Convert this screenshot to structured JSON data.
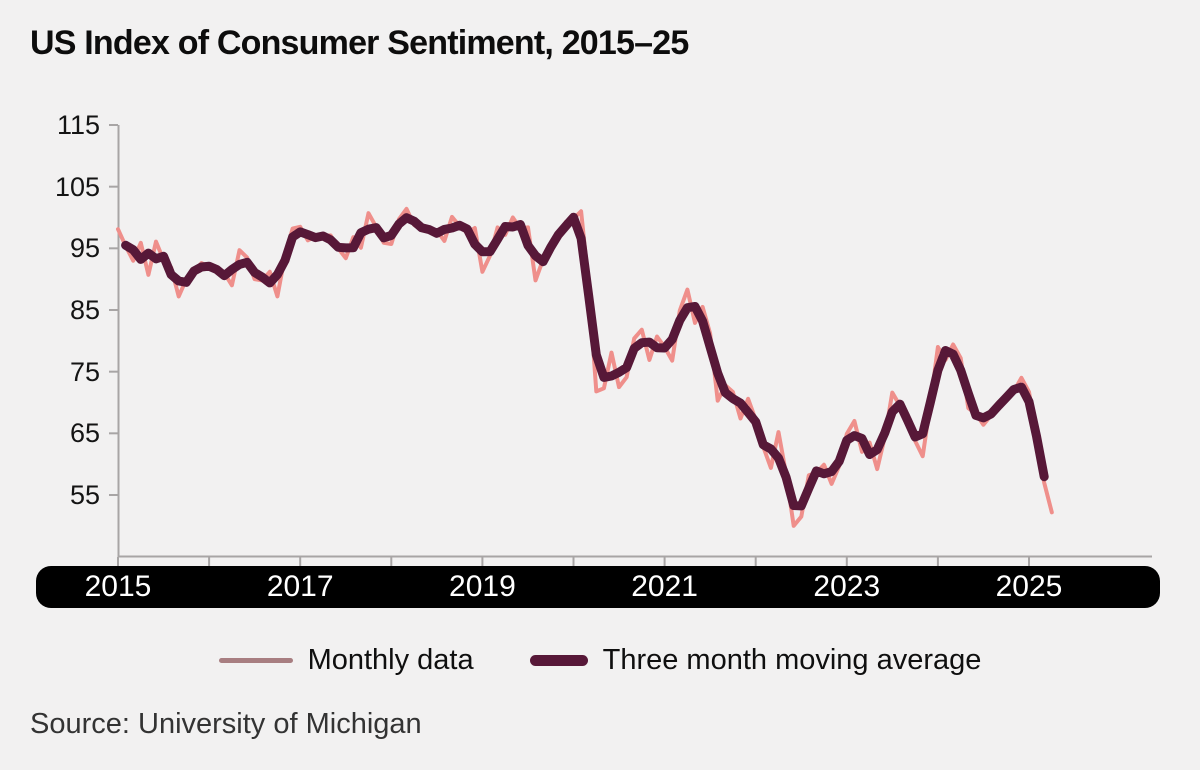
{
  "header": {
    "title": "US Index of Consumer Sentiment, 2015–25"
  },
  "footer": {
    "source": "Source: University of Michigan"
  },
  "colors": {
    "background": "#f2f1f1",
    "monthly_line": "#ef8f8b",
    "moving_average_line": "#571838",
    "legend_monthly_swatch": "#a87e81",
    "axis": "#a8a5a5",
    "x_band_background": "#000000",
    "x_band_text": "#ffffff",
    "title_text": "#0d0d0d",
    "source_text": "#333333"
  },
  "legend": {
    "items": [
      {
        "label": "Monthly data",
        "swatch": "thin-line",
        "color": "#a87e81"
      },
      {
        "label": "Three month moving average",
        "swatch": "thick-line",
        "color": "#571838"
      }
    ]
  },
  "chart_data": {
    "type": "line",
    "title": "US Index of Consumer Sentiment, 2015–25",
    "xlabel": "",
    "ylabel": "",
    "grid": false,
    "legend_position": "bottom-center",
    "ylim": [
      45,
      115
    ],
    "y_ticks": [
      55,
      65,
      75,
      85,
      95,
      105,
      115
    ],
    "x_start": "2015-01",
    "x_end": "2025-04",
    "x_ticks_years": [
      2015,
      2016,
      2017,
      2018,
      2019,
      2020,
      2021,
      2022,
      2023,
      2024,
      2025
    ],
    "x_tick_labels": [
      "2015",
      "2017",
      "2019",
      "2021",
      "2023",
      "2025"
    ],
    "series": [
      {
        "name": "Monthly data",
        "color": "#ef8f8b",
        "stroke_width": 4,
        "values": [
          98.1,
          95.4,
          93.0,
          95.9,
          90.7,
          96.1,
          93.1,
          91.9,
          87.2,
          90.0,
          91.3,
          92.6,
          92.0,
          91.7,
          91.0,
          89.0,
          94.7,
          93.5,
          90.0,
          89.8,
          91.2,
          87.2,
          93.8,
          98.2,
          98.5,
          96.3,
          96.9,
          97.0,
          97.1,
          95.0,
          93.4,
          96.8,
          95.1,
          100.7,
          98.5,
          95.9,
          95.7,
          99.7,
          101.4,
          98.8,
          98.0,
          98.2,
          97.9,
          96.2,
          100.1,
          98.6,
          97.5,
          98.3,
          91.2,
          93.8,
          98.4,
          97.2,
          100.0,
          98.2,
          98.4,
          89.8,
          93.2,
          95.5,
          96.8,
          99.3,
          99.8,
          101.0,
          89.1,
          71.8,
          72.3,
          78.1,
          72.5,
          74.1,
          80.4,
          81.8,
          76.9,
          80.7,
          79.0,
          76.8,
          84.9,
          88.3,
          82.9,
          85.5,
          81.2,
          70.3,
          72.8,
          71.7,
          67.4,
          70.6,
          67.2,
          62.8,
          59.4,
          65.2,
          58.4,
          50.0,
          51.5,
          58.2,
          58.6,
          59.9,
          56.8,
          59.7,
          64.9,
          67.0,
          62.0,
          63.5,
          59.2,
          64.4,
          71.6,
          69.5,
          68.1,
          63.8,
          61.3,
          69.7,
          79.0,
          76.9,
          79.4,
          77.2,
          69.1,
          68.2,
          66.4,
          67.9,
          70.1,
          70.5,
          71.8,
          74.0,
          71.7,
          64.7,
          57.0,
          52.2
        ]
      },
      {
        "name": "Three month moving average",
        "color": "#571838",
        "stroke_width": 9,
        "derived": "3-month centered moving average of the Monthly data series"
      }
    ]
  }
}
